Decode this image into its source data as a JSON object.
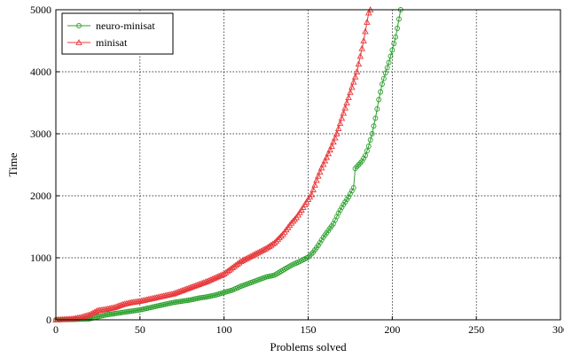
{
  "chart_data": {
    "type": "line",
    "title": "",
    "xlabel": "Problems solved",
    "ylabel": "Time",
    "xlim": [
      0,
      300
    ],
    "ylim": [
      0,
      5000
    ],
    "x_ticks": [
      0,
      50,
      100,
      150,
      200,
      250,
      300
    ],
    "y_ticks": [
      0,
      1000,
      2000,
      3000,
      4000,
      5000
    ],
    "grid": true,
    "legend_position": "top-left",
    "series": [
      {
        "name": "neuro-minisat",
        "color": "#2ca02c",
        "marker": "circle",
        "points": [
          [
            0,
            0
          ],
          [
            10,
            5
          ],
          [
            20,
            15
          ],
          [
            25,
            50
          ],
          [
            30,
            80
          ],
          [
            35,
            100
          ],
          [
            40,
            120
          ],
          [
            45,
            140
          ],
          [
            50,
            160
          ],
          [
            55,
            190
          ],
          [
            60,
            220
          ],
          [
            65,
            250
          ],
          [
            70,
            280
          ],
          [
            75,
            300
          ],
          [
            80,
            320
          ],
          [
            85,
            350
          ],
          [
            90,
            370
          ],
          [
            95,
            400
          ],
          [
            100,
            440
          ],
          [
            105,
            480
          ],
          [
            110,
            540
          ],
          [
            115,
            590
          ],
          [
            120,
            640
          ],
          [
            125,
            690
          ],
          [
            130,
            720
          ],
          [
            135,
            800
          ],
          [
            140,
            880
          ],
          [
            145,
            940
          ],
          [
            150,
            1010
          ],
          [
            153,
            1090
          ],
          [
            156,
            1200
          ],
          [
            159,
            1330
          ],
          [
            162,
            1440
          ],
          [
            165,
            1550
          ],
          [
            168,
            1720
          ],
          [
            171,
            1860
          ],
          [
            174,
            1980
          ],
          [
            176,
            2080
          ],
          [
            177,
            2130
          ],
          [
            178,
            2440
          ],
          [
            180,
            2500
          ],
          [
            182,
            2560
          ],
          [
            184,
            2650
          ],
          [
            186,
            2800
          ],
          [
            188,
            3000
          ],
          [
            190,
            3250
          ],
          [
            192,
            3550
          ],
          [
            194,
            3800
          ],
          [
            196,
            3980
          ],
          [
            198,
            4150
          ],
          [
            200,
            4350
          ],
          [
            202,
            4560
          ],
          [
            203,
            4700
          ],
          [
            204,
            4850
          ],
          [
            205,
            5000
          ]
        ]
      },
      {
        "name": "minisat",
        "color": "#e8393b",
        "marker": "triangle",
        "points": [
          [
            0,
            0
          ],
          [
            10,
            15
          ],
          [
            15,
            40
          ],
          [
            20,
            80
          ],
          [
            25,
            150
          ],
          [
            30,
            170
          ],
          [
            35,
            200
          ],
          [
            40,
            250
          ],
          [
            45,
            280
          ],
          [
            50,
            300
          ],
          [
            55,
            330
          ],
          [
            60,
            360
          ],
          [
            65,
            390
          ],
          [
            70,
            420
          ],
          [
            75,
            470
          ],
          [
            80,
            520
          ],
          [
            85,
            570
          ],
          [
            90,
            620
          ],
          [
            95,
            680
          ],
          [
            100,
            740
          ],
          [
            105,
            840
          ],
          [
            110,
            940
          ],
          [
            115,
            1010
          ],
          [
            120,
            1080
          ],
          [
            125,
            1150
          ],
          [
            130,
            1240
          ],
          [
            135,
            1380
          ],
          [
            140,
            1560
          ],
          [
            143,
            1650
          ],
          [
            146,
            1770
          ],
          [
            149,
            1900
          ],
          [
            152,
            2020
          ],
          [
            155,
            2250
          ],
          [
            158,
            2450
          ],
          [
            161,
            2620
          ],
          [
            164,
            2800
          ],
          [
            167,
            3000
          ],
          [
            170,
            3250
          ],
          [
            173,
            3500
          ],
          [
            176,
            3750
          ],
          [
            179,
            4000
          ],
          [
            181,
            4250
          ],
          [
            183,
            4500
          ],
          [
            185,
            4800
          ],
          [
            186,
            4950
          ],
          [
            187,
            5000
          ]
        ]
      }
    ]
  }
}
